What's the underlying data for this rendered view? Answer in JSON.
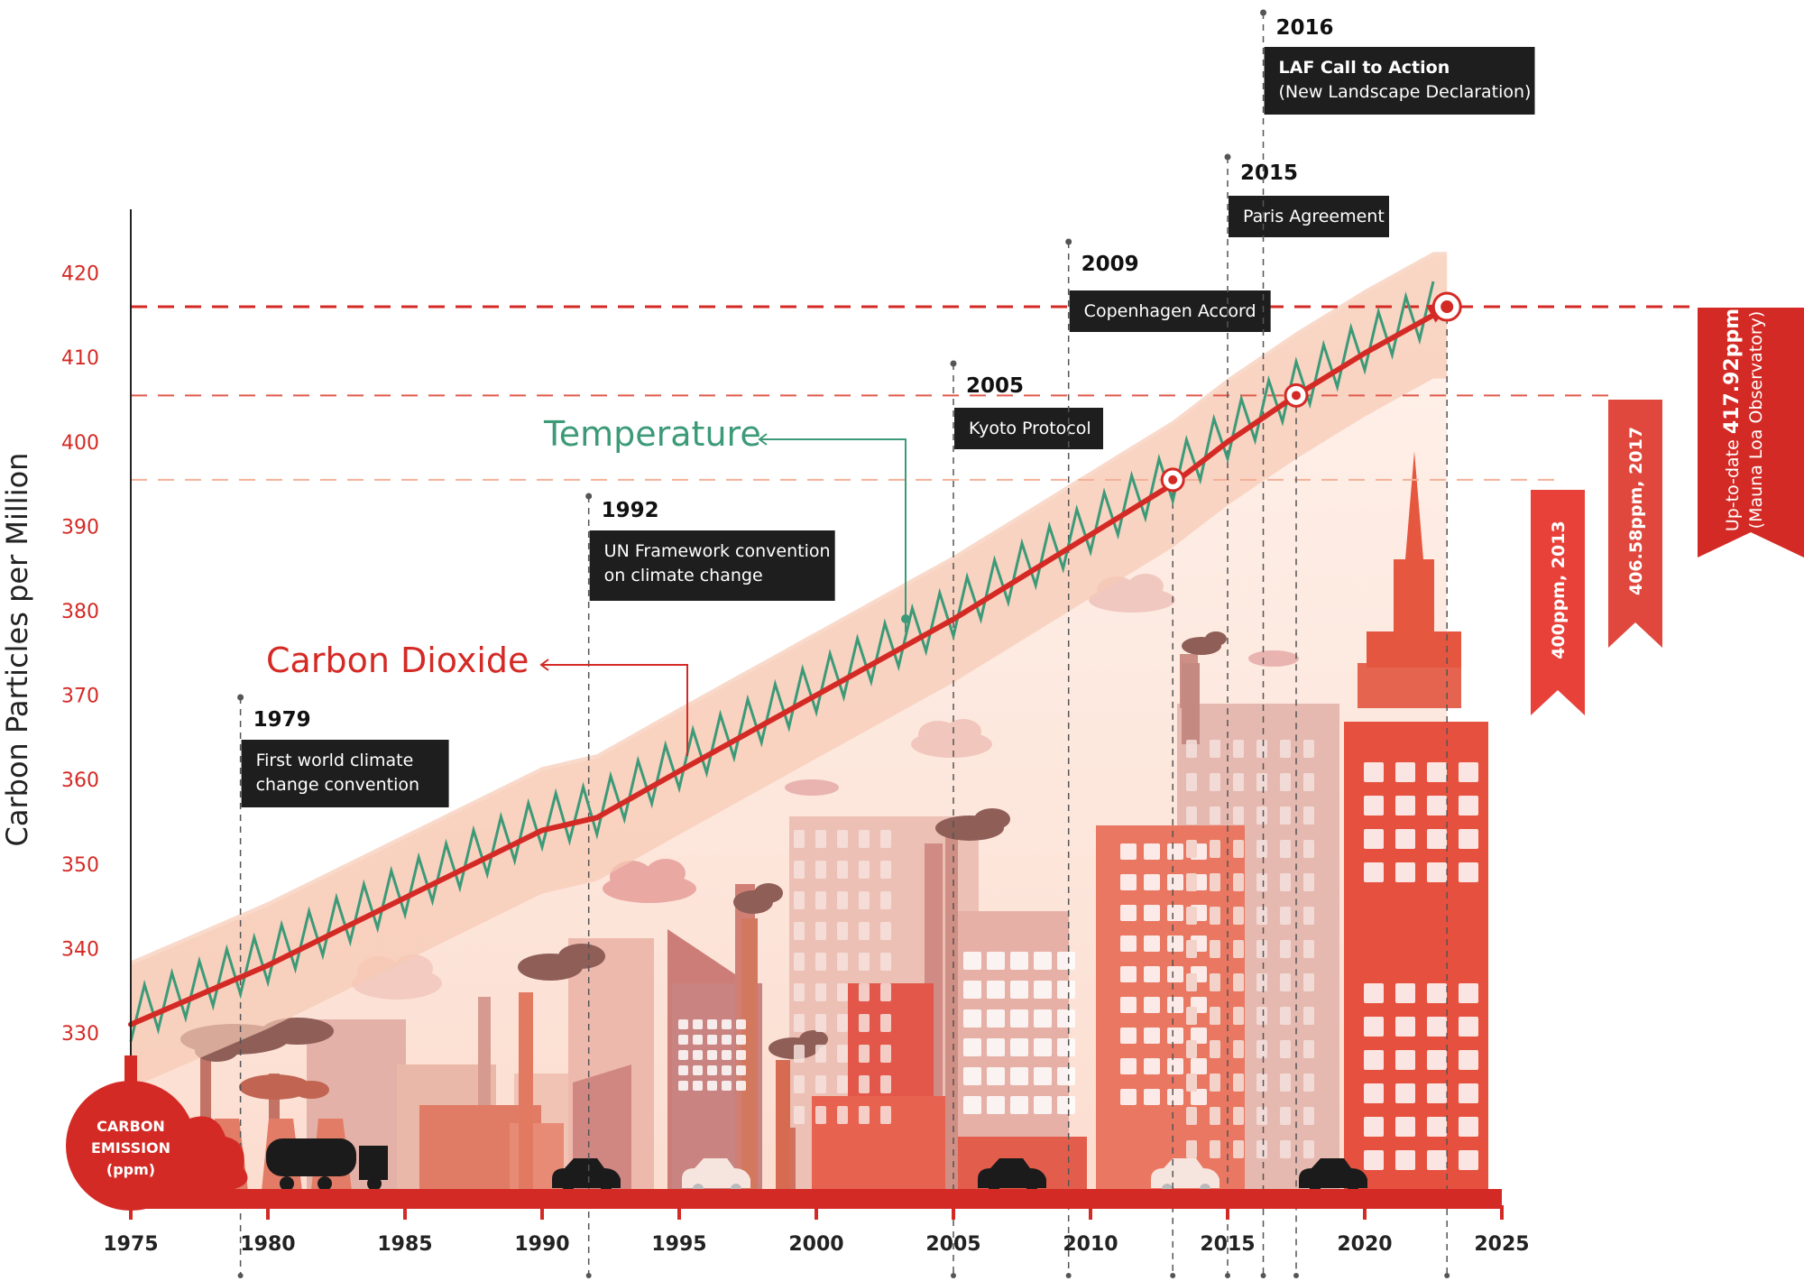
{
  "chart_data": {
    "type": "line",
    "ylabel": "Carbon Particles per Million",
    "xlabel": "",
    "xlim": [
      1975,
      2025
    ],
    "ylim": [
      325,
      425
    ],
    "x_ticks": [
      "1975",
      "1980",
      "1985",
      "1990",
      "1995",
      "2000",
      "2005",
      "2010",
      "2015",
      "2020",
      "2025"
    ],
    "y_ticks": [
      "330",
      "340",
      "350",
      "360",
      "370",
      "380",
      "390",
      "400",
      "410",
      "420"
    ],
    "series": [
      {
        "name": "Carbon Dioxide",
        "color": "#d42a25",
        "x": [
          1975,
          1980,
          1985,
          1990,
          1992,
          1995,
          2000,
          2005,
          2010,
          2013,
          2015,
          2017.5,
          2020,
          2022.5
        ],
        "y": [
          331,
          338,
          346,
          354,
          355.5,
          361,
          370,
          379,
          389,
          395,
          400,
          405.5,
          410.5,
          415
        ]
      },
      {
        "name": "Temperature",
        "color": "#3c9a78",
        "x": [
          1975,
          1980,
          1985,
          1990,
          1992,
          1995,
          2000,
          2005,
          2010,
          2013,
          2015,
          2017.5,
          2020,
          2022.5
        ],
        "y": [
          331,
          338,
          346,
          354,
          355.5,
          361,
          370,
          379,
          389,
          395,
          400,
          405.5,
          410.5,
          415
        ],
        "seasonal_amplitude": 5
      }
    ],
    "reference_lines": [
      {
        "y": 395.5,
        "label": "400ppm, 2013",
        "color": "#f3b096"
      },
      {
        "y": 405.5,
        "label": "406.58ppm, 2017",
        "color": "#e05a4c"
      },
      {
        "y": 416,
        "label_prefix": "Up-to-date ",
        "label_value": "417.92ppm",
        "label_suffix": "(Mauna Loa Observatory)",
        "color": "#d42a25"
      }
    ],
    "highlight_points": [
      {
        "x": 2013,
        "y": 395.5
      },
      {
        "x": 2017.5,
        "y": 405.5
      },
      {
        "x": 2023,
        "y": 416
      }
    ],
    "events": [
      {
        "year": "1979",
        "x": 1979,
        "text": [
          "First world climate",
          "change convention"
        ]
      },
      {
        "year": "1992",
        "x": 1991.7,
        "text": [
          "UN Framework convention",
          "on climate change"
        ]
      },
      {
        "year": "2005",
        "x": 2005,
        "text": [
          "Kyoto Protocol"
        ]
      },
      {
        "year": "2009",
        "x": 2009.2,
        "text": [
          "Copenhagen Accord"
        ]
      },
      {
        "year": "2015",
        "x": 2015,
        "text": [
          "Paris Agreement"
        ]
      },
      {
        "year": "2016",
        "x": 2016.3,
        "text_bold": "LAF Call to Action",
        "text": [
          "(New Landscape Declaration)"
        ]
      }
    ],
    "badge": [
      "CARBON",
      "EMISSION",
      "(ppm)"
    ]
  },
  "colors": {
    "red": "#d42a25",
    "green": "#3c9a78",
    "band": "#f7c9b4",
    "dark_box": "#1e1e1e"
  }
}
